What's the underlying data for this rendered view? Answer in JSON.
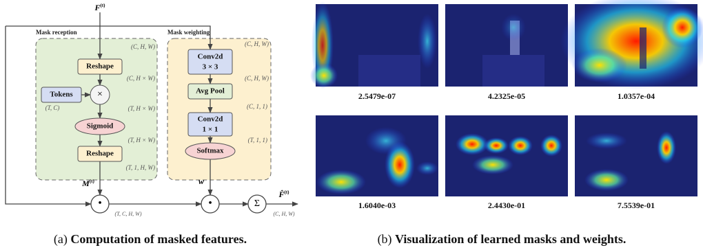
{
  "left": {
    "input": {
      "symbol": "F",
      "sup": "(t)"
    },
    "mask_reception": {
      "title": "Mask reception",
      "shape_in": "(C, H, W)",
      "reshape1": "Reshape",
      "shape_reshape1": "(C, H × W)",
      "tokens": "Tokens",
      "tokens_shape": "(T, C)",
      "multiply": "×",
      "shape_mul": "(T, H × W)",
      "sigmoid": "Sigmoid",
      "shape_sigmoid": "(T, H × W)",
      "reshape2": "Reshape",
      "shape_reshape2": "(T, 1, H, W)",
      "output": {
        "symbol": "M",
        "sup": "(t)"
      }
    },
    "mask_weighting": {
      "title": "Mask weighting",
      "shape_in": "(C, H, W)",
      "conv1": [
        "Conv2d",
        "3 × 3"
      ],
      "shape_conv1": "(C, H, W)",
      "pool": "Avg Pool",
      "shape_pool": "(C, 1, 1)",
      "conv2": [
        "Conv2d",
        "1 × 1"
      ],
      "shape_conv2": "(T, 1, 1)",
      "softmax": "Softmax",
      "output": "w"
    },
    "product_op": "•",
    "product_shape": "(T, C, H, W)",
    "sum_op": "Σ",
    "output": {
      "symbol": "F̂",
      "sup": "(t)"
    },
    "output_shape": "(C, H, W)",
    "caption": {
      "label": "(a)",
      "text": "Computation of masked features."
    }
  },
  "right": {
    "images": [
      {
        "weight": "2.5479e-07"
      },
      {
        "weight": "4.2325e-05"
      },
      {
        "weight": "1.0357e-04"
      },
      {
        "weight": "1.6040e-03"
      },
      {
        "weight": "2.4430e-01"
      },
      {
        "weight": "7.5539e-01"
      }
    ],
    "caption": {
      "label": "(b)",
      "text": "Visualization of learned masks and weights."
    }
  }
}
